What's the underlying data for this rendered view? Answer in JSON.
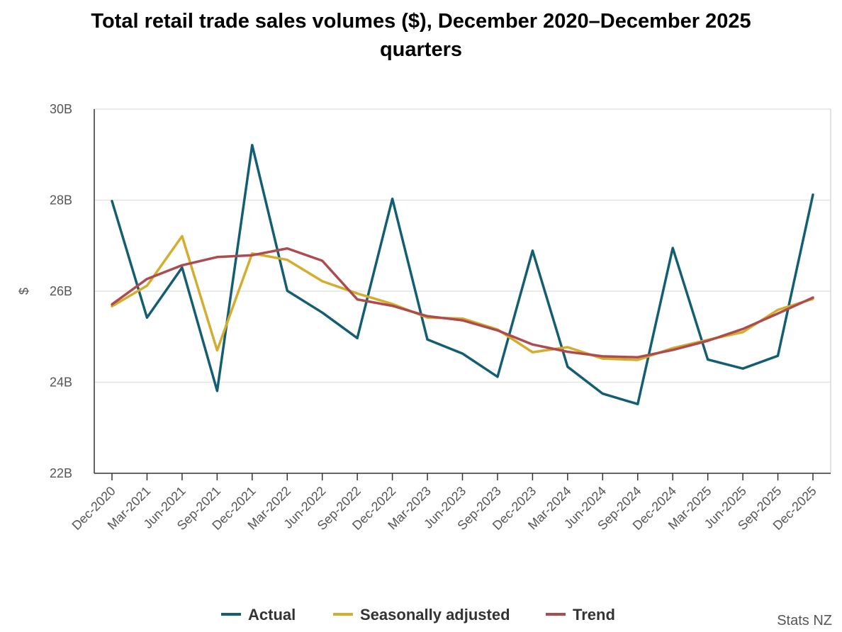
{
  "chart_data": {
    "type": "line",
    "title_lines": [
      "Total retail trade sales volumes ($), December 2020–December 2025",
      "quarters"
    ],
    "xlabel": "",
    "ylabel": "$",
    "ylim": [
      22,
      30
    ],
    "y_ticks": [
      22,
      24,
      26,
      28,
      30
    ],
    "y_tick_labels": [
      "22B",
      "24B",
      "26B",
      "28B",
      "30B"
    ],
    "grid": true,
    "legend_position": "bottom",
    "categories": [
      "Dec-2020",
      "Mar-2021",
      "Jun-2021",
      "Sep-2021",
      "Dec-2021",
      "Mar-2022",
      "Jun-2022",
      "Sep-2022",
      "Dec-2022",
      "Mar-2023",
      "Jun-2023",
      "Sep-2023",
      "Dec-2023",
      "Mar-2024",
      "Jun-2024",
      "Sep-2024",
      "Dec-2024",
      "Mar-2025",
      "Jun-2025",
      "Sep-2025",
      "Dec-2025"
    ],
    "series": [
      {
        "name": "Actual",
        "color": "#135e73",
        "values": [
          27.98,
          25.42,
          26.52,
          23.81,
          29.21,
          26.01,
          25.53,
          24.97,
          28.03,
          24.94,
          24.63,
          24.12,
          26.89,
          24.34,
          23.75,
          23.52,
          26.95,
          24.5,
          24.3,
          24.58,
          28.12
        ]
      },
      {
        "name": "Seasonally adjusted",
        "color": "#d4ad2e",
        "values": [
          25.67,
          26.12,
          27.21,
          24.7,
          26.83,
          26.69,
          26.22,
          25.95,
          25.72,
          25.42,
          25.4,
          25.16,
          24.66,
          24.77,
          24.52,
          24.49,
          24.75,
          24.93,
          25.1,
          25.59,
          25.83
        ]
      },
      {
        "name": "Trend",
        "color": "#ad4c4f",
        "values": [
          25.71,
          26.27,
          26.57,
          26.75,
          26.79,
          26.94,
          26.67,
          25.82,
          25.68,
          25.45,
          25.36,
          25.14,
          24.83,
          24.67,
          24.57,
          24.55,
          24.71,
          24.91,
          25.17,
          25.51,
          25.86
        ]
      }
    ]
  },
  "credit": "Stats NZ"
}
